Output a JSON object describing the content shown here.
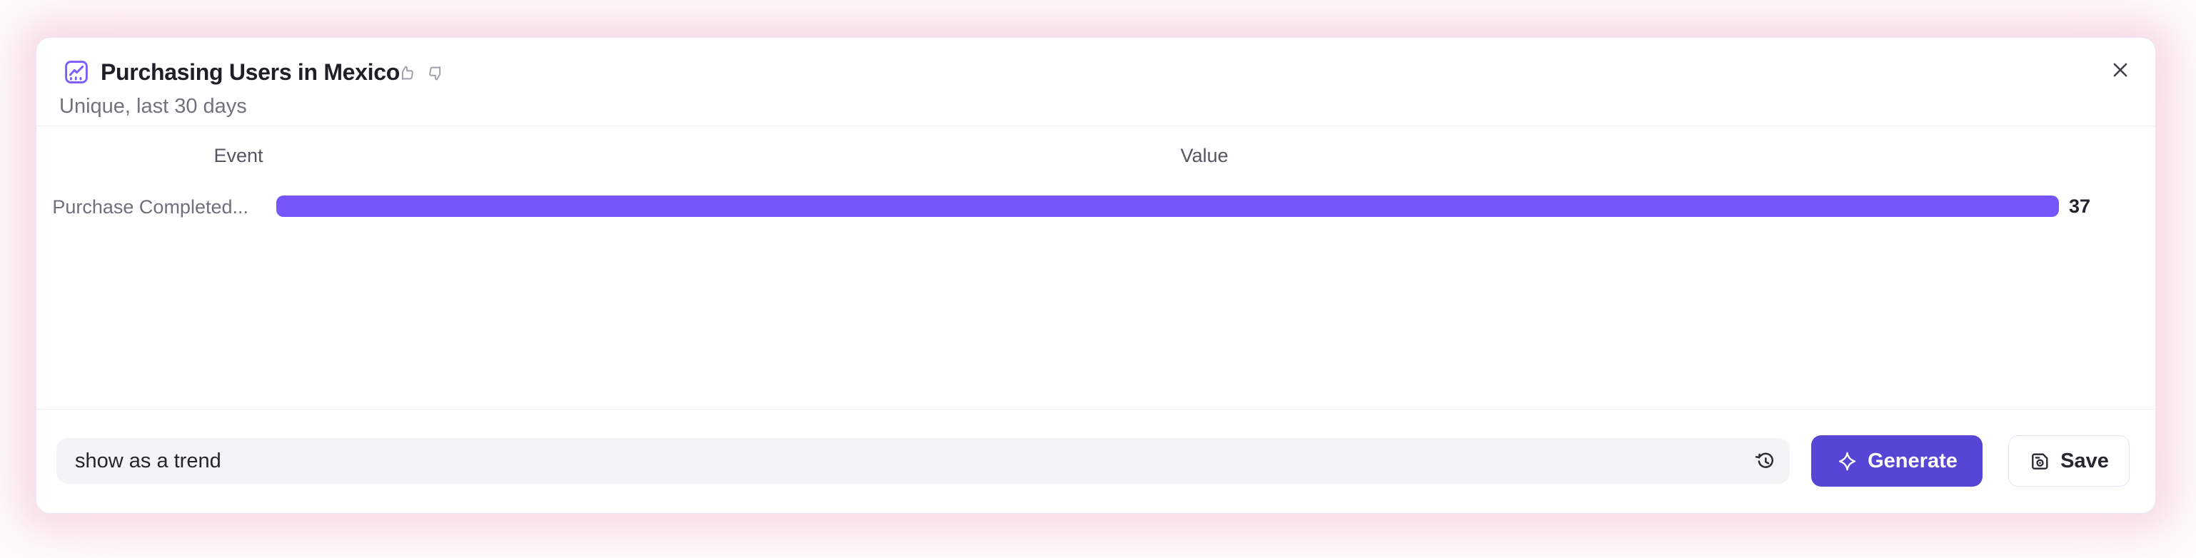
{
  "header": {
    "title": "Purchasing Users in Mexico",
    "subtitle": "Unique, last 30 days"
  },
  "table": {
    "event_column": "Event",
    "value_column": "Value"
  },
  "rows": [
    {
      "label": "Purchase Completed...",
      "value": "37"
    }
  ],
  "footer": {
    "input_value": "show as a trend",
    "generate_label": "Generate",
    "save_label": "Save"
  },
  "icons": {
    "title": "line-chart-icon",
    "feedback_positive": "thumbs-up-icon",
    "feedback_negative": "thumbs-down-icon",
    "dismiss": "close-icon",
    "prompt_history": "history-icon",
    "generate": "sparkle-icon",
    "save": "floppy-disk-icon"
  },
  "colors": {
    "bar": "#7655FA",
    "accent_button": "#5646D6",
    "icon_purple": "#7B5BFB",
    "glow": "#F7D7E3"
  },
  "chart_data": {
    "type": "bar",
    "orientation": "horizontal",
    "title": "Purchasing Users in Mexico",
    "subtitle": "Unique, last 30 days",
    "columns": [
      "Event",
      "Value"
    ],
    "categories": [
      "Purchase Completed..."
    ],
    "values": [
      37
    ],
    "xlim": [
      0,
      37
    ],
    "bar_color": "#7655FA",
    "grid": false,
    "legend": false
  }
}
